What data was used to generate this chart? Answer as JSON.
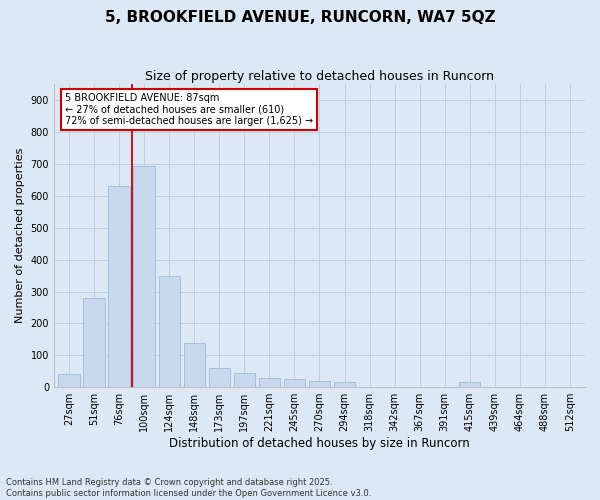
{
  "title": "5, BROOKFIELD AVENUE, RUNCORN, WA7 5QZ",
  "subtitle": "Size of property relative to detached houses in Runcorn",
  "xlabel": "Distribution of detached houses by size in Runcorn",
  "ylabel": "Number of detached properties",
  "categories": [
    "27sqm",
    "51sqm",
    "76sqm",
    "100sqm",
    "124sqm",
    "148sqm",
    "173sqm",
    "197sqm",
    "221sqm",
    "245sqm",
    "270sqm",
    "294sqm",
    "318sqm",
    "342sqm",
    "367sqm",
    "391sqm",
    "415sqm",
    "439sqm",
    "464sqm",
    "488sqm",
    "512sqm"
  ],
  "values": [
    40,
    280,
    630,
    695,
    350,
    140,
    60,
    45,
    30,
    25,
    20,
    15,
    0,
    0,
    0,
    0,
    15,
    0,
    0,
    0,
    0
  ],
  "bar_color": "#c8d9ee",
  "bar_edge_color": "#a0b8d8",
  "grid_color": "#c0d0e0",
  "background_color": "#dce8f4",
  "vline_color": "#cc0000",
  "vline_position": 2.5,
  "annotation_text": "5 BROOKFIELD AVENUE: 87sqm\n← 27% of detached houses are smaller (610)\n72% of semi-detached houses are larger (1,625) →",
  "annotation_box_color": "#ffffff",
  "annotation_box_edge": "#cc0000",
  "ylim": [
    0,
    950
  ],
  "yticks": [
    0,
    100,
    200,
    300,
    400,
    500,
    600,
    700,
    800,
    900
  ],
  "footer": "Contains HM Land Registry data © Crown copyright and database right 2025.\nContains public sector information licensed under the Open Government Licence v3.0.",
  "title_fontsize": 11,
  "subtitle_fontsize": 9,
  "xlabel_fontsize": 8.5,
  "ylabel_fontsize": 8,
  "tick_fontsize": 7,
  "annotation_fontsize": 7,
  "footer_fontsize": 6
}
